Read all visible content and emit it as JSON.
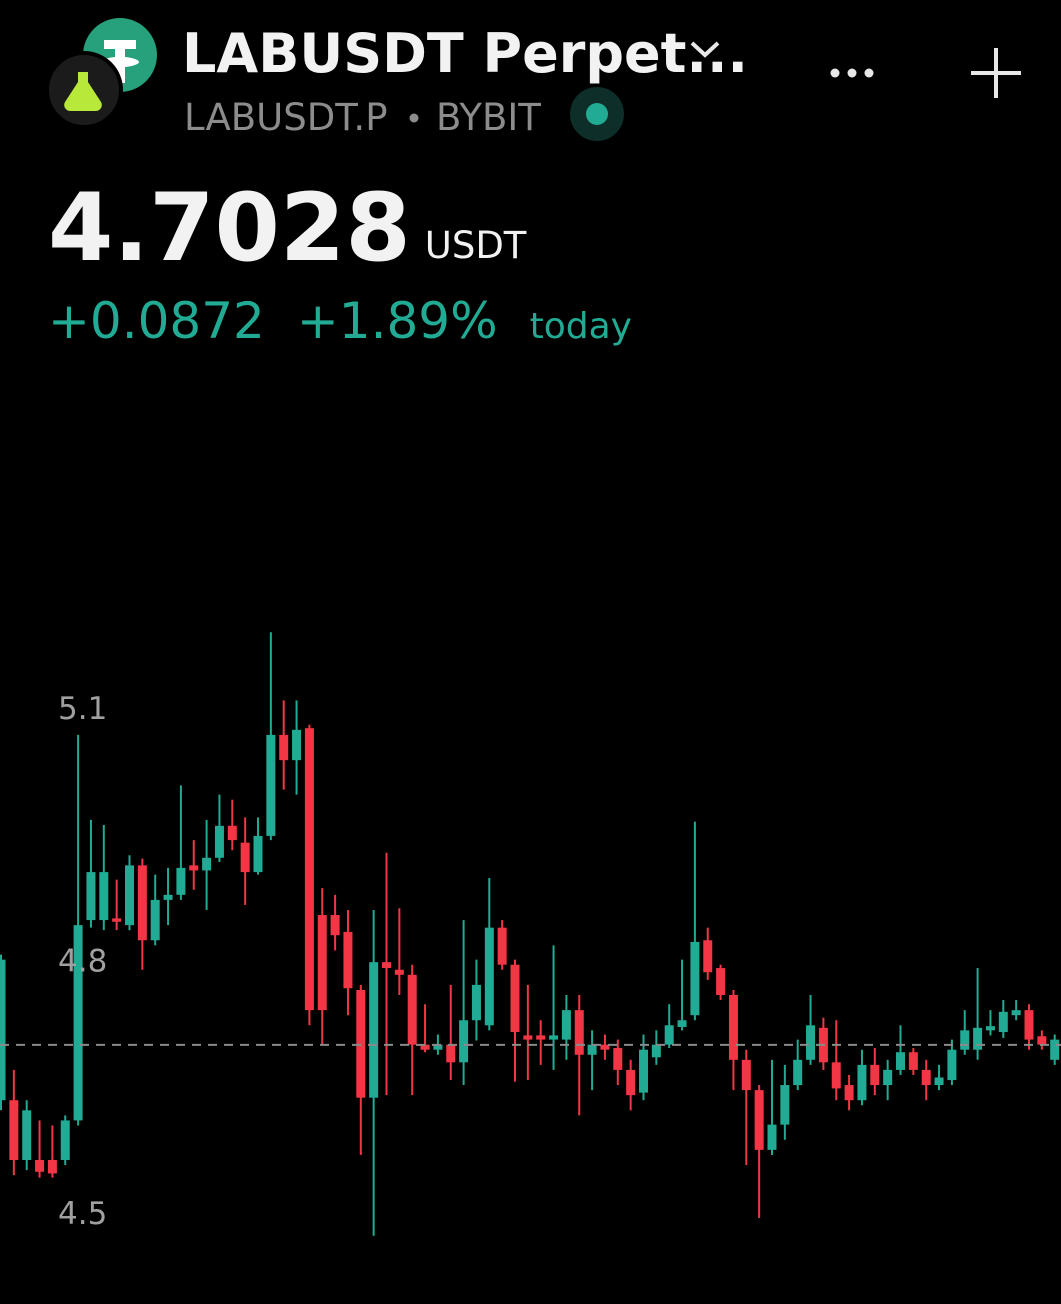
{
  "header": {
    "title": "LABUSDT Perpet...",
    "symbol": "LABUSDT.P",
    "exchange": "BYBIT"
  },
  "quote": {
    "price": 4.7028,
    "currency": "USDT",
    "change": "+0.0872",
    "change_percent": "+1.89%",
    "period": "today"
  },
  "chart_data": {
    "type": "candlestick",
    "up_color": "#22ab94",
    "down_color": "#f23645",
    "ylim": [
      4.4,
      5.5
    ],
    "yticks": [
      4.5,
      4.8,
      5.1
    ],
    "open": [
      4.637,
      4.637,
      4.566,
      4.566,
      4.566,
      4.566,
      4.613,
      4.851,
      4.851,
      4.853,
      4.845,
      4.916,
      4.827,
      4.875,
      4.881,
      4.916,
      4.91,
      4.925,
      4.963,
      4.943,
      4.908,
      4.951,
      5.071,
      5.041,
      5.079,
      4.857,
      4.857,
      4.837,
      4.768,
      4.64,
      4.801,
      4.792,
      4.786,
      4.703,
      4.697,
      4.703,
      4.682,
      4.732,
      4.726,
      4.842,
      4.798,
      4.714,
      4.714,
      4.709,
      4.709,
      4.744,
      4.691,
      4.703,
      4.699,
      4.673,
      4.646,
      4.688,
      4.703,
      4.724,
      4.738,
      4.827,
      4.794,
      4.762,
      4.685,
      4.649,
      4.578,
      4.608,
      4.655,
      4.685,
      4.723,
      4.682,
      4.655,
      4.637,
      4.679,
      4.655,
      4.673,
      4.694,
      4.673,
      4.655,
      4.661,
      4.697,
      4.697,
      4.72,
      4.718,
      4.738,
      4.744,
      4.713,
      4.685
    ],
    "high": [
      4.81,
      4.673,
      4.637,
      4.613,
      4.607,
      4.619,
      5.071,
      4.97,
      4.964,
      4.899,
      4.928,
      4.924,
      4.905,
      4.913,
      5.011,
      4.946,
      4.97,
      5.0,
      4.994,
      4.973,
      4.973,
      5.193,
      5.112,
      5.112,
      5.083,
      4.889,
      4.881,
      4.863,
      4.774,
      4.863,
      4.931,
      4.865,
      4.798,
      4.751,
      4.715,
      4.774,
      4.851,
      4.804,
      4.901,
      4.851,
      4.804,
      4.774,
      4.732,
      4.821,
      4.762,
      4.762,
      4.72,
      4.715,
      4.709,
      4.685,
      4.715,
      4.72,
      4.751,
      4.804,
      4.968,
      4.842,
      4.798,
      4.768,
      4.697,
      4.655,
      4.685,
      4.679,
      4.709,
      4.762,
      4.735,
      4.732,
      4.667,
      4.697,
      4.699,
      4.685,
      4.726,
      4.699,
      4.685,
      4.679,
      4.709,
      4.744,
      4.794,
      4.744,
      4.756,
      4.756,
      4.751,
      4.72,
      4.715
    ],
    "low": [
      4.625,
      4.548,
      4.554,
      4.545,
      4.545,
      4.56,
      4.607,
      4.842,
      4.839,
      4.839,
      4.839,
      4.792,
      4.821,
      4.845,
      4.875,
      4.887,
      4.863,
      4.92,
      4.934,
      4.869,
      4.905,
      4.946,
      5.006,
      5.0,
      4.726,
      4.703,
      4.815,
      4.738,
      4.572,
      4.476,
      4.643,
      4.762,
      4.643,
      4.694,
      4.691,
      4.661,
      4.655,
      4.708,
      4.72,
      4.792,
      4.659,
      4.661,
      4.679,
      4.673,
      4.685,
      4.619,
      4.649,
      4.685,
      4.655,
      4.625,
      4.637,
      4.679,
      4.699,
      4.72,
      4.732,
      4.78,
      4.756,
      4.649,
      4.56,
      4.497,
      4.572,
      4.59,
      4.649,
      4.679,
      4.673,
      4.637,
      4.625,
      4.631,
      4.643,
      4.637,
      4.667,
      4.667,
      4.637,
      4.649,
      4.655,
      4.691,
      4.685,
      4.714,
      4.711,
      4.732,
      4.697,
      4.697,
      4.679
    ],
    "close": [
      4.804,
      4.566,
      4.625,
      4.552,
      4.55,
      4.613,
      4.845,
      4.908,
      4.908,
      4.849,
      4.916,
      4.827,
      4.875,
      4.881,
      4.913,
      4.91,
      4.925,
      4.963,
      4.946,
      4.908,
      4.951,
      5.071,
      5.041,
      5.077,
      4.744,
      4.744,
      4.833,
      4.77,
      4.64,
      4.801,
      4.794,
      4.786,
      4.703,
      4.697,
      4.703,
      4.682,
      4.732,
      4.774,
      4.842,
      4.798,
      4.718,
      4.709,
      4.709,
      4.714,
      4.744,
      4.691,
      4.703,
      4.697,
      4.673,
      4.643,
      4.697,
      4.703,
      4.726,
      4.732,
      4.825,
      4.789,
      4.762,
      4.685,
      4.649,
      4.578,
      4.608,
      4.655,
      4.685,
      4.726,
      4.682,
      4.651,
      4.637,
      4.679,
      4.655,
      4.673,
      4.694,
      4.673,
      4.655,
      4.664,
      4.697,
      4.72,
      4.723,
      4.725,
      4.742,
      4.744,
      4.709,
      4.703,
      4.709
    ]
  }
}
